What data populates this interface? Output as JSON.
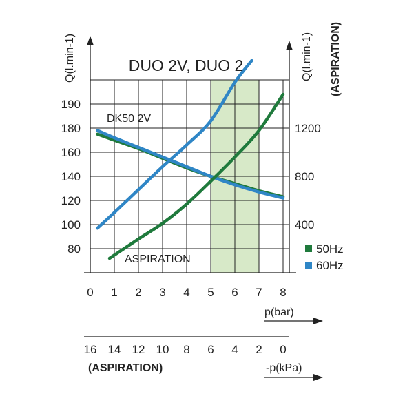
{
  "chart_data": {
    "type": "line",
    "title": "DUO 2V, DUO 2",
    "x_axis": {
      "label": "p(bar)",
      "ticks": [
        "0",
        "1",
        "2",
        "3",
        "4",
        "5",
        "6",
        "7",
        "8"
      ],
      "range": [
        0,
        8
      ]
    },
    "secondary_x_axis": {
      "label": "-p(kPa)",
      "sublabel": "(ASPIRATION)",
      "ticks": [
        "16",
        "14",
        "12",
        "10",
        "8",
        "6",
        "4",
        "2",
        "0"
      ]
    },
    "y_axis_left": {
      "label": "Q(l.min-1)",
      "ticks": [
        "80",
        "100",
        "120",
        "140",
        "160",
        "180",
        "190"
      ]
    },
    "y_axis_right": {
      "label": "Q(l.min-1)",
      "sublabel": "(ASPIRATION)",
      "ticks": [
        "400",
        "800",
        "1200"
      ]
    },
    "highlight_band": {
      "x_from": 5,
      "x_to": 7,
      "color": "#d7e9c8"
    },
    "annotations": [
      {
        "text": "DK50 2V",
        "near_series": "DK50 2V"
      },
      {
        "text": "ASPIRATION",
        "near_series": "aspiration"
      }
    ],
    "legend": {
      "position": "bottom-right",
      "entries": [
        {
          "label": "50Hz",
          "color": "#1f7a3c"
        },
        {
          "label": "60Hz",
          "color": "#2f86c6"
        }
      ]
    },
    "series": [
      {
        "key": "dk50-50hz",
        "frequency": "50Hz",
        "color": "#1f7a3c",
        "axis": "left",
        "x": [
          0.3,
          1,
          2,
          3,
          4,
          5,
          6,
          7,
          8
        ],
        "y": [
          175,
          170,
          163,
          155,
          147,
          140,
          134,
          128,
          123
        ]
      },
      {
        "key": "dk50-60hz",
        "frequency": "60Hz",
        "color": "#2f86c6",
        "axis": "left",
        "x": [
          0.3,
          1,
          2,
          3,
          4,
          5,
          6,
          7,
          8
        ],
        "y": [
          178,
          172,
          164,
          156,
          148,
          140,
          133,
          127,
          122
        ]
      },
      {
        "key": "aspiration-50hz",
        "frequency": "50Hz",
        "color": "#1f7a3c",
        "axis": "left",
        "x": [
          0.8,
          2,
          3,
          4,
          5,
          6,
          7,
          8
        ],
        "y": [
          72,
          88,
          101,
          117,
          136,
          156,
          178,
          194
        ]
      },
      {
        "key": "aspiration-60hz",
        "frequency": "60Hz",
        "color": "#2f86c6",
        "axis": "left",
        "x": [
          0.3,
          1,
          2,
          3,
          4,
          5,
          6,
          6.7
        ],
        "y": [
          97,
          110,
          129,
          148,
          166,
          183,
          199,
          208
        ]
      }
    ]
  }
}
